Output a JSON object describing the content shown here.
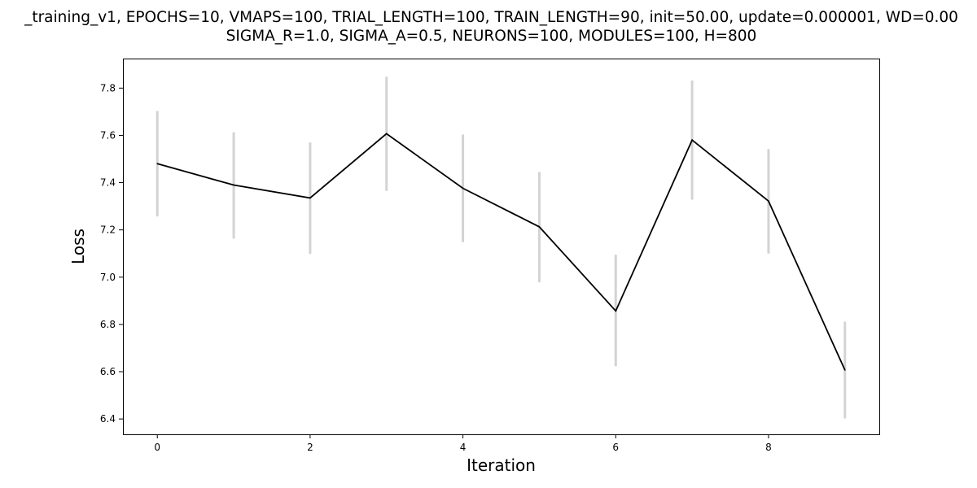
{
  "chart_data": {
    "type": "line",
    "title_lines": [
      "_training_v1, EPOCHS=10, VMAPS=100, TRIAL_LENGTH=100, TRAIN_LENGTH=90, init=50.00, update=0.000001, WD=0.00",
      "SIGMA_R=1.0, SIGMA_A=0.5, NEURONS=100, MODULES=100, H=800"
    ],
    "xlabel": "Iteration",
    "ylabel": "Loss",
    "x": [
      0,
      1,
      2,
      3,
      4,
      5,
      6,
      7,
      8,
      9
    ],
    "xlim": [
      -0.45,
      9.45
    ],
    "ylim": [
      6.335,
      7.925
    ],
    "xticks": [
      0,
      2,
      4,
      6,
      8
    ],
    "yticks": [
      6.4,
      6.6,
      6.8,
      7.0,
      7.2,
      7.4,
      7.6,
      7.8
    ],
    "ytick_labels": [
      "6.4",
      "6.6",
      "6.8",
      "7.0",
      "7.2",
      "7.4",
      "7.6",
      "7.8"
    ],
    "xtick_labels": [
      "0",
      "2",
      "4",
      "6",
      "8"
    ],
    "grid": false,
    "legend": "none",
    "series": [
      {
        "values": [
          7.48,
          7.39,
          7.335,
          7.607,
          7.376,
          7.213,
          6.857,
          7.58,
          7.322,
          6.607
        ],
        "error_lower": [
          7.257,
          7.163,
          7.098,
          7.365,
          7.148,
          6.978,
          6.623,
          7.328,
          7.1,
          6.402
        ],
        "error_upper": [
          7.703,
          7.613,
          7.57,
          7.848,
          7.603,
          7.445,
          7.095,
          7.832,
          7.542,
          6.812
        ],
        "line_color": "#000000",
        "error_color": "#d3d3d3"
      }
    ]
  }
}
